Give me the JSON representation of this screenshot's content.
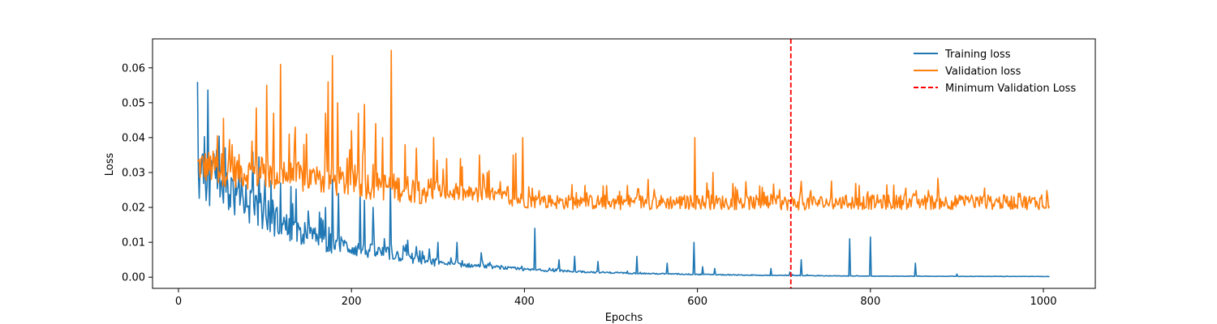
{
  "chart_data": {
    "type": "line",
    "title": "",
    "xlabel": "Epochs",
    "ylabel": "Loss",
    "xlim": [
      -30,
      1060
    ],
    "ylim": [
      -0.0032,
      0.0683
    ],
    "grid": false,
    "legend_position": "top-right",
    "x_ticks": [
      0,
      200,
      400,
      600,
      800,
      1000
    ],
    "x_tick_labels": [
      "0",
      "200",
      "400",
      "600",
      "800",
      "1000"
    ],
    "y_ticks": [
      0.0,
      0.01,
      0.02,
      0.03,
      0.04,
      0.05,
      0.06
    ],
    "y_tick_labels": [
      "0.00",
      "0.01",
      "0.02",
      "0.03",
      "0.04",
      "0.05",
      "0.06"
    ],
    "colors": {
      "training": "#1f77b4",
      "validation": "#ff7f0e",
      "min_line": "#ff0000",
      "axes": "#000000"
    },
    "vline": {
      "name": "Minimum Validation Loss",
      "x": 708
    },
    "series": [
      {
        "name": "Training loss",
        "anchors": [
          [
            22,
            0.0315
          ],
          [
            30,
            0.029
          ],
          [
            45,
            0.027
          ],
          [
            60,
            0.025
          ],
          [
            80,
            0.021
          ],
          [
            100,
            0.018
          ],
          [
            120,
            0.015
          ],
          [
            140,
            0.013
          ],
          [
            160,
            0.011
          ],
          [
            180,
            0.0095
          ],
          [
            200,
            0.0085
          ],
          [
            220,
            0.0075
          ],
          [
            250,
            0.0065
          ],
          [
            280,
            0.005
          ],
          [
            300,
            0.004
          ],
          [
            330,
            0.0035
          ],
          [
            360,
            0.003
          ],
          [
            400,
            0.0022
          ],
          [
            450,
            0.0017
          ],
          [
            500,
            0.0013
          ],
          [
            550,
            0.001
          ],
          [
            600,
            0.0008
          ],
          [
            650,
            0.0006
          ],
          [
            700,
            0.0005
          ],
          [
            750,
            0.0004
          ],
          [
            800,
            0.0003
          ],
          [
            900,
            0.00025
          ],
          [
            1007,
            0.0002
          ]
        ],
        "spikes": [
          [
            75,
            0.022
          ],
          [
            95,
            0.024
          ],
          [
            100,
            0.028
          ],
          [
            118,
            0.027
          ],
          [
            130,
            0.026
          ],
          [
            150,
            0.019
          ],
          [
            170,
            0.02
          ],
          [
            178,
            0.028
          ],
          [
            185,
            0.024
          ],
          [
            210,
            0.024
          ],
          [
            215,
            0.022
          ],
          [
            225,
            0.02
          ],
          [
            245,
            0.027
          ],
          [
            260,
            0.009
          ],
          [
            300,
            0.01
          ],
          [
            322,
            0.01
          ],
          [
            350,
            0.007
          ],
          [
            412,
            0.014
          ],
          [
            440,
            0.005
          ],
          [
            458,
            0.006
          ],
          [
            485,
            0.0045
          ],
          [
            530,
            0.006
          ],
          [
            565,
            0.004
          ],
          [
            596,
            0.01
          ],
          [
            606,
            0.003
          ],
          [
            620,
            0.0025
          ],
          [
            685,
            0.0025
          ],
          [
            707,
            0.0015
          ],
          [
            720,
            0.005
          ],
          [
            776,
            0.011
          ],
          [
            800,
            0.0115
          ],
          [
            852,
            0.004
          ],
          [
            900,
            0.0009
          ]
        ],
        "noise_amp": 0.18,
        "noise_bias": 0.0005
      },
      {
        "name": "Validation loss",
        "anchors": [
          [
            22,
            0.032
          ],
          [
            50,
            0.031
          ],
          [
            80,
            0.03
          ],
          [
            120,
            0.029
          ],
          [
            160,
            0.028
          ],
          [
            200,
            0.027
          ],
          [
            240,
            0.026
          ],
          [
            280,
            0.025
          ],
          [
            320,
            0.024
          ],
          [
            360,
            0.0235
          ],
          [
            400,
            0.022
          ],
          [
            450,
            0.0215
          ],
          [
            500,
            0.0215
          ],
          [
            600,
            0.0215
          ],
          [
            700,
            0.0213
          ],
          [
            800,
            0.0215
          ],
          [
            900,
            0.0215
          ],
          [
            1007,
            0.0215
          ]
        ],
        "spikes": [
          [
            52,
            0.0455
          ],
          [
            62,
            0.038
          ],
          [
            85,
            0.039
          ],
          [
            90,
            0.0485
          ],
          [
            102,
            0.055
          ],
          [
            110,
            0.047
          ],
          [
            118,
            0.061
          ],
          [
            128,
            0.041
          ],
          [
            135,
            0.043
          ],
          [
            148,
            0.041
          ],
          [
            170,
            0.047
          ],
          [
            173,
            0.056
          ],
          [
            178,
            0.0635
          ],
          [
            184,
            0.05
          ],
          [
            200,
            0.042
          ],
          [
            208,
            0.047
          ],
          [
            215,
            0.0495
          ],
          [
            228,
            0.044
          ],
          [
            236,
            0.04
          ],
          [
            246,
            0.065
          ],
          [
            262,
            0.038
          ],
          [
            275,
            0.037
          ],
          [
            295,
            0.04
          ],
          [
            310,
            0.034
          ],
          [
            326,
            0.034
          ],
          [
            348,
            0.035
          ],
          [
            357,
            0.03
          ],
          [
            387,
            0.035
          ],
          [
            390,
            0.0355
          ],
          [
            398,
            0.04
          ],
          [
            455,
            0.0265
          ],
          [
            597,
            0.04
          ],
          [
            618,
            0.03
          ],
          [
            720,
            0.0275
          ],
          [
            797,
            0.0245
          ],
          [
            850,
            0.024
          ]
        ],
        "noise_amp": 0.1,
        "noise_bias": 0.0
      }
    ]
  }
}
